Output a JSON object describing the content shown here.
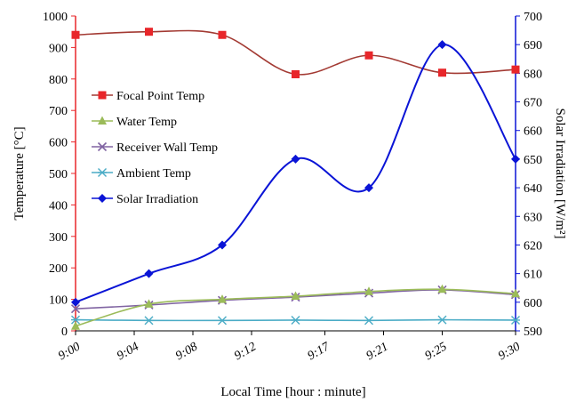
{
  "chart_data": {
    "type": "line",
    "x_ticks": [
      "9:00",
      "9:04",
      "9:08",
      "9:12",
      "9:17",
      "9:21",
      "9:25",
      "9:30"
    ],
    "xlabel": "Local Time [hour : minute]",
    "ylabel_left": "Temperature [°C]",
    "ylabel_right": "Solar Irradiation [W/m²]",
    "ylim_left": [
      0,
      1000
    ],
    "yticks_left": [
      0,
      100,
      200,
      300,
      400,
      500,
      600,
      700,
      800,
      900,
      1000
    ],
    "ylim_right": [
      590,
      700
    ],
    "yticks_right": [
      590,
      600,
      610,
      620,
      630,
      640,
      650,
      660,
      670,
      680,
      690,
      700
    ],
    "x": [
      "9:00",
      "9:05",
      "9:10",
      "9:15",
      "9:20",
      "9:25",
      "9:30"
    ],
    "grid": false,
    "legend_position": "center-left",
    "series": [
      {
        "name": "Focal Point Temp",
        "axis": "left",
        "color": "#a33a33",
        "marker": "square",
        "marker_color": "#e8262a",
        "values": [
          940,
          950,
          940,
          815,
          875,
          820,
          830
        ]
      },
      {
        "name": "Water Temp",
        "axis": "left",
        "color": "#9bbb59",
        "marker": "triangle",
        "marker_color": "#9bbb59",
        "values": [
          15,
          85,
          100,
          110,
          125,
          132,
          118
        ]
      },
      {
        "name": "Receiver Wall Temp",
        "axis": "left",
        "color": "#8064a2",
        "marker": "cross",
        "marker_color": "#8064a2",
        "values": [
          70,
          82,
          97,
          107,
          120,
          130,
          115
        ]
      },
      {
        "name": "Ambient Temp",
        "axis": "left",
        "color": "#4bacc6",
        "marker": "star",
        "marker_color": "#4bacc6",
        "values": [
          35,
          33,
          33,
          34,
          33,
          35,
          34
        ]
      },
      {
        "name": "Solar Irradiation",
        "axis": "right",
        "color": "#0a14d6",
        "marker": "diamond",
        "marker_color": "#0a14d6",
        "values": [
          600,
          610,
          620,
          650,
          640,
          690,
          650
        ]
      }
    ]
  }
}
